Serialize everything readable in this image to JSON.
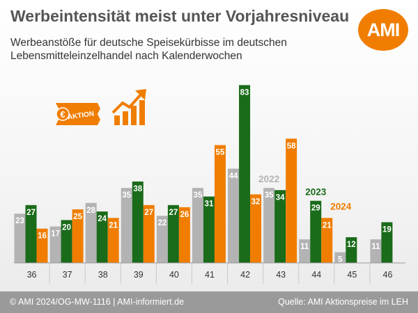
{
  "header": {
    "title": "Werbeintensität meist unter Vorjahresniveau",
    "subtitle_line1": "Werbeanstöße für deutsche Speisekürbisse im deutschen",
    "subtitle_line2": "Lebensmitteleinzelhandel nach Kalenderwochen",
    "logo_text": "AMI"
  },
  "promo": {
    "currency_symbol": "€",
    "label": "AKTION"
  },
  "footer": {
    "left": "© AMI 2024/OG-MW-1116 | AMI-informiert.de",
    "right": "Quelle: AMI Aktionspreise im LEH"
  },
  "colors": {
    "series_2022": "#b3b3b3",
    "series_2023": "#1a6b1a",
    "series_2024": "#f07d00",
    "brand": "#f07d00"
  },
  "chart_data": {
    "type": "bar",
    "title": "Werbeintensität meist unter Vorjahresniveau",
    "xlabel": "",
    "ylabel": "",
    "ylim": [
      0,
      85
    ],
    "categories": [
      "36",
      "37",
      "38",
      "39",
      "40",
      "41",
      "42",
      "43",
      "44",
      "45",
      "46"
    ],
    "series": [
      {
        "name": "2022",
        "color": "#b3b3b3",
        "values": [
          23,
          17,
          28,
          35,
          22,
          35,
          44,
          35,
          11,
          5,
          11
        ]
      },
      {
        "name": "2023",
        "color": "#1a6b1a",
        "values": [
          27,
          20,
          24,
          38,
          27,
          31,
          83,
          34,
          29,
          12,
          19
        ]
      },
      {
        "name": "2024",
        "color": "#f07d00",
        "values": [
          16,
          25,
          21,
          27,
          26,
          55,
          32,
          58,
          21,
          null,
          null
        ]
      }
    ],
    "series_labels_in_plot": [
      {
        "series": "2022",
        "category": "43"
      },
      {
        "series": "2023",
        "category": "44"
      },
      {
        "series": "2024",
        "category": "44"
      }
    ]
  }
}
